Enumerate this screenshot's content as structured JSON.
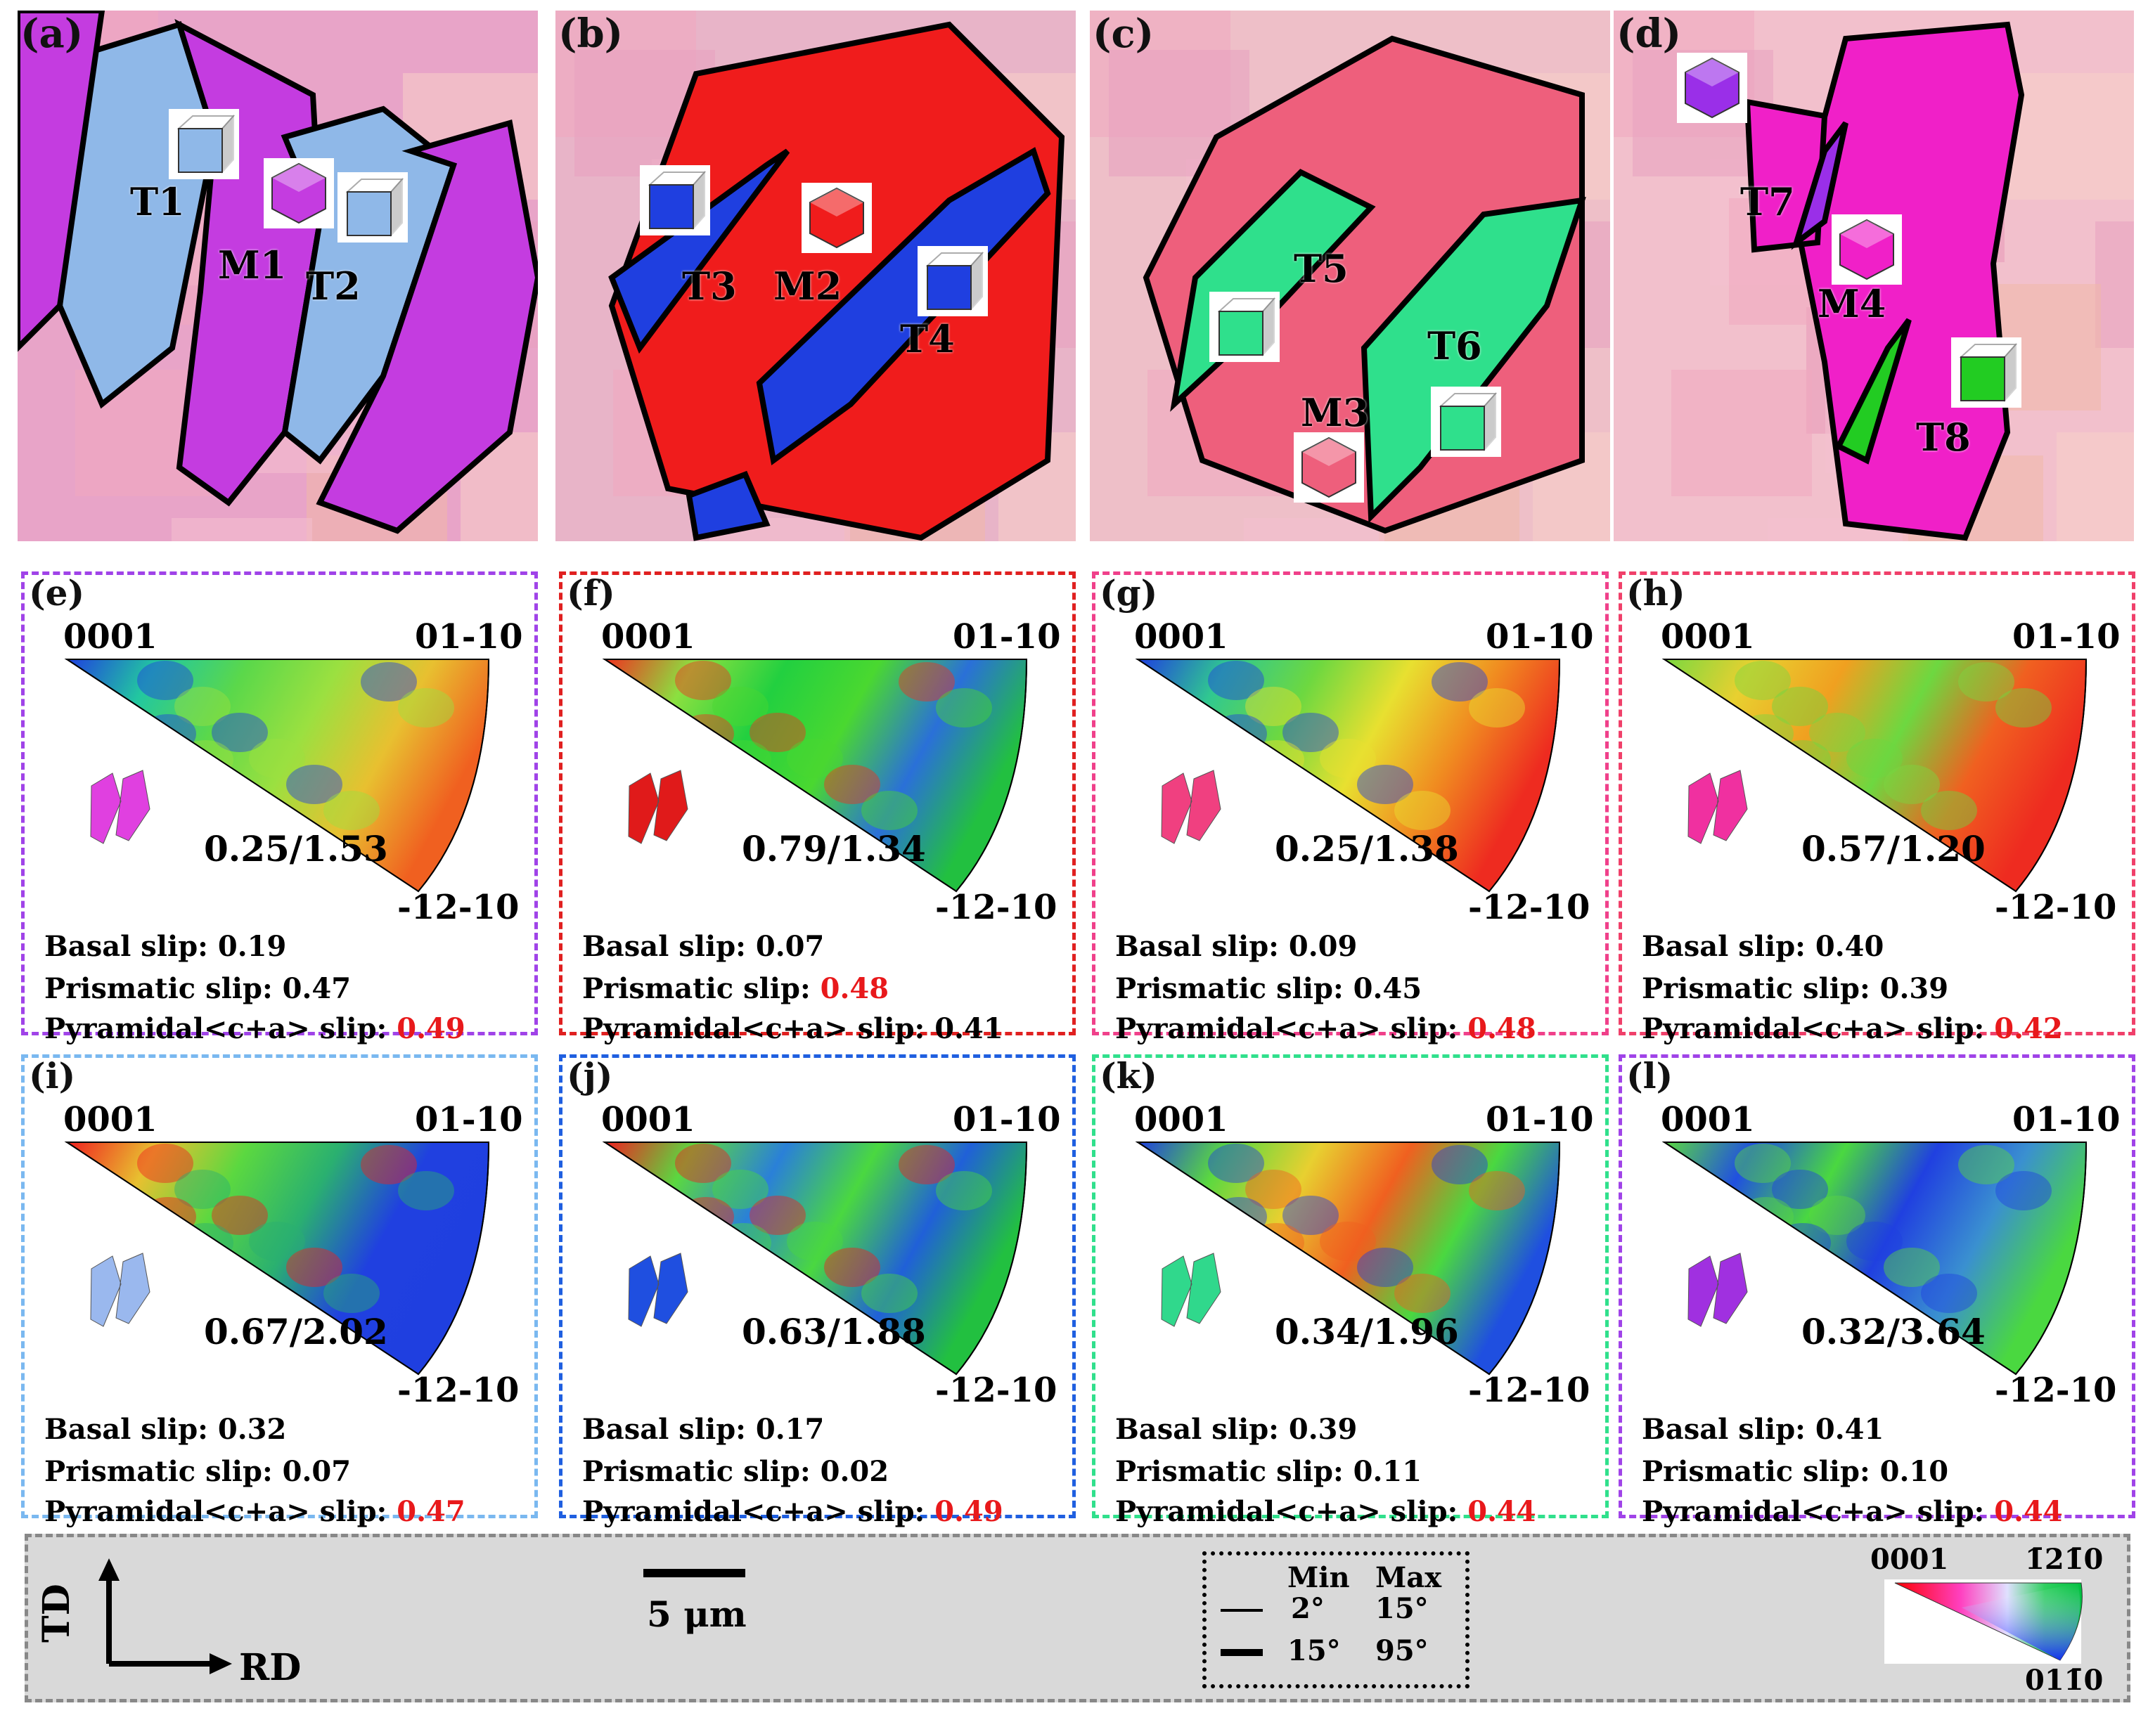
{
  "ebsd_panels": [
    {
      "label": "(a)",
      "bg": "#e8a4c8",
      "features": [
        {
          "name": "T1",
          "color": "#8fb8e8"
        },
        {
          "name": "M1",
          "color": "#c43ce0"
        },
        {
          "name": "T2",
          "color": "#8fb8e8"
        }
      ]
    },
    {
      "label": "(b)",
      "bg": "#e8b4c8",
      "features": [
        {
          "name": "T3",
          "color": "#1f3fe0"
        },
        {
          "name": "M2",
          "color": "#f01c1c"
        },
        {
          "name": "T4",
          "color": "#1f3fe0"
        }
      ]
    },
    {
      "label": "(c)",
      "bg": "#eebfc8",
      "features": [
        {
          "name": "T5",
          "color": "#2fe08c"
        },
        {
          "name": "M3",
          "color": "#ee5f7c"
        },
        {
          "name": "T6",
          "color": "#2fe08c"
        }
      ]
    },
    {
      "label": "(d)",
      "bg": "#f2c0cc",
      "features": [
        {
          "name": "T7",
          "color": "#9a2fe8"
        },
        {
          "name": "M4",
          "color": "#f020c8"
        },
        {
          "name": "T8",
          "color": "#22cc22"
        }
      ]
    }
  ],
  "ipf_panels": [
    {
      "label": "(e)",
      "border": "#a043e8",
      "ratio": "0.25/1.53",
      "basal": "Basal slip: 0.19",
      "prismatic_label": "Prismatic slip:",
      "prismatic": "0.47",
      "prismatic_hl": false,
      "pyramidal_label": "Pyramidal<c+a>  slip:",
      "pyramidal": "0.49",
      "pyramidal_hl": true,
      "shape_color": "#e040e0",
      "grad": [
        "#1f3fe0",
        "#22c7a0",
        "#5bd84a",
        "#9be040",
        "#e8c030",
        "#f06020"
      ]
    },
    {
      "label": "(f)",
      "border": "#e02020",
      "ratio": "0.79/1.34",
      "basal": "Basal slip: 0.07",
      "prismatic_label": "Prismatic slip:",
      "prismatic": "0.48",
      "prismatic_hl": true,
      "pyramidal_label": "Pyramidal<c+a>  slip:",
      "pyramidal": "0.41",
      "pyramidal_hl": false,
      "shape_color": "#e01a1a",
      "grad": [
        "#f03020",
        "#8be040",
        "#22d040",
        "#4ad830",
        "#2a70d8",
        "#22c040"
      ]
    },
    {
      "label": "(g)",
      "border": "#f0408a",
      "ratio": "0.25/1.38",
      "basal": "Basal slip: 0.09",
      "prismatic_label": "Prismatic slip:",
      "prismatic": "0.45",
      "prismatic_hl": false,
      "pyramidal_label": "Pyramidal<c+a>  slip:",
      "pyramidal": "0.48",
      "pyramidal_hl": true,
      "shape_color": "#f04080",
      "grad": [
        "#1f3fe0",
        "#30c890",
        "#6dd840",
        "#e8e030",
        "#f08a20",
        "#ee2b20"
      ]
    },
    {
      "label": "(h)",
      "border": "#f0406a",
      "ratio": "0.57/1.20",
      "basal": "Basal slip: 0.40",
      "prismatic_label": "Prismatic slip:",
      "prismatic": "0.39",
      "prismatic_hl": false,
      "pyramidal_label": "Pyramidal<c+a>  slip:",
      "pyramidal": "0.42",
      "pyramidal_hl": true,
      "shape_color": "#f030a0",
      "grad": [
        "#7ad840",
        "#e8d030",
        "#f0a020",
        "#6dd840",
        "#f06020",
        "#ee2b20"
      ]
    },
    {
      "label": "(i)",
      "border": "#7ab8f0",
      "ratio": "0.67/2.02",
      "basal": "Basal slip: 0.32",
      "prismatic_label": "Prismatic slip:",
      "prismatic": "0.07",
      "prismatic_hl": false,
      "pyramidal_label": "Pyramidal<c+a>  slip:",
      "pyramidal": "0.47",
      "pyramidal_hl": true,
      "shape_color": "#9ab8ee",
      "grad": [
        "#f02020",
        "#e8c030",
        "#5bd840",
        "#2ab070",
        "#2040e0",
        "#1f3fe0"
      ]
    },
    {
      "label": "(j)",
      "border": "#1f5fe0",
      "ratio": "0.63/1.88",
      "basal": "Basal slip: 0.17",
      "prismatic_label": "Prismatic slip:",
      "prismatic": "0.02",
      "prismatic_hl": false,
      "pyramidal_label": "Pyramidal<c+a>  slip:",
      "pyramidal": "0.49",
      "pyramidal_hl": true,
      "shape_color": "#1f4fe0",
      "grad": [
        "#f02020",
        "#5bd840",
        "#2a80d8",
        "#4ad840",
        "#2060d8",
        "#22c040"
      ]
    },
    {
      "label": "(k)",
      "border": "#30e08c",
      "ratio": "0.34/1.96",
      "basal": "Basal slip: 0.39",
      "prismatic_label": "Prismatic slip:",
      "prismatic": "0.11",
      "prismatic_hl": false,
      "pyramidal_label": "Pyramidal<c+a>  slip:",
      "pyramidal": "0.44",
      "pyramidal_hl": true,
      "shape_color": "#30d88c",
      "grad": [
        "#1f3fe0",
        "#5bd840",
        "#e8d030",
        "#f06020",
        "#4ad840",
        "#1f4fe0"
      ]
    },
    {
      "label": "(l)",
      "border": "#a043e8",
      "ratio": "0.32/3.64",
      "basal": "Basal slip: 0.41",
      "prismatic_label": "Prismatic slip:",
      "prismatic": "0.10",
      "prismatic_hl": false,
      "pyramidal_label": "Pyramidal<c+a>  slip:",
      "pyramidal": "0.44",
      "pyramidal_hl": true,
      "shape_color": "#a030e0",
      "grad": [
        "#5bd840",
        "#2050e0",
        "#4ad840",
        "#2040e0",
        "#3a90d0",
        "#4ad840"
      ]
    }
  ],
  "ipf_poles": {
    "top_left": "0001",
    "top_right": "01-10",
    "bottom": "-12-10"
  },
  "legend": {
    "td": "TD",
    "rd": "RD",
    "scale": "5 μm",
    "min": "Min",
    "max": "Max",
    "row1_min": "2°",
    "row1_max": "15°",
    "row2_min": "15°",
    "row2_max": "95°",
    "key_0001": "0001",
    "key_1210": "1̄21̄0",
    "key_0110": "011̄0"
  },
  "colors": {
    "highlight": "#e8191b",
    "legend_bg": "#d9d9d9"
  }
}
